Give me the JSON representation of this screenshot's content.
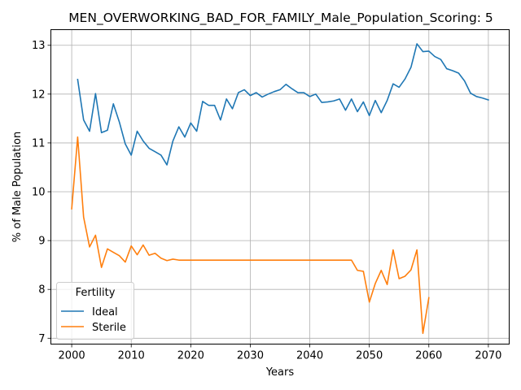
{
  "chart_data": {
    "type": "line",
    "title": "MEN_OVERWORKING_BAD_FOR_FAMILY_Male_Population_Scoring: 5",
    "xlabel": "Years",
    "ylabel": "% of Male Population",
    "xlim": [
      1996.5,
      2073.5
    ],
    "ylim": [
      6.88,
      13.32
    ],
    "xticks": [
      2000,
      2010,
      2020,
      2030,
      2040,
      2050,
      2060,
      2070
    ],
    "yticks": [
      7,
      8,
      9,
      10,
      11,
      12,
      13
    ],
    "grid": true,
    "legend": {
      "title": "Fertility",
      "position": "lower-left"
    },
    "series": [
      {
        "name": "Ideal",
        "color": "#1f77b4",
        "x": [
          2001,
          2002,
          2003,
          2004,
          2005,
          2006,
          2007,
          2008,
          2009,
          2010,
          2011,
          2012,
          2013,
          2014,
          2015,
          2016,
          2017,
          2018,
          2019,
          2020,
          2021,
          2022,
          2023,
          2024,
          2025,
          2026,
          2027,
          2028,
          2029,
          2030,
          2031,
          2032,
          2033,
          2034,
          2035,
          2036,
          2037,
          2038,
          2039,
          2040,
          2041,
          2042,
          2043,
          2044,
          2045,
          2046,
          2047,
          2048,
          2049,
          2050,
          2051,
          2052,
          2053,
          2054,
          2055,
          2056,
          2057,
          2058,
          2059,
          2060,
          2061,
          2062,
          2063,
          2064,
          2065,
          2066,
          2067,
          2068,
          2069,
          2070
        ],
        "y": [
          12.3,
          11.47,
          11.24,
          12.01,
          11.21,
          11.26,
          11.8,
          11.43,
          10.98,
          10.75,
          11.24,
          11.04,
          10.89,
          10.82,
          10.75,
          10.55,
          11.04,
          11.33,
          11.12,
          11.41,
          11.24,
          11.85,
          11.77,
          11.77,
          11.47,
          11.9,
          11.7,
          12.03,
          12.09,
          11.97,
          12.03,
          11.94,
          12.0,
          12.05,
          12.09,
          12.2,
          12.11,
          12.03,
          12.03,
          11.95,
          12.0,
          11.83,
          11.84,
          11.86,
          11.9,
          11.67,
          11.9,
          11.64,
          11.84,
          11.56,
          11.87,
          11.62,
          11.87,
          12.21,
          12.14,
          12.31,
          12.55,
          13.03,
          12.87,
          12.88,
          12.77,
          12.71,
          12.52,
          12.48,
          12.43,
          12.27,
          12.02,
          11.95,
          11.92,
          11.88
        ]
      },
      {
        "name": "Sterile",
        "color": "#ff7f0e",
        "x": [
          2000,
          2001,
          2002,
          2003,
          2004,
          2005,
          2006,
          2007,
          2008,
          2009,
          2010,
          2011,
          2012,
          2013,
          2014,
          2015,
          2016,
          2017,
          2018,
          2019,
          2020,
          2021,
          2022,
          2023,
          2024,
          2025,
          2026,
          2027,
          2028,
          2029,
          2030,
          2031,
          2032,
          2033,
          2034,
          2035,
          2036,
          2037,
          2038,
          2039,
          2040,
          2041,
          2042,
          2043,
          2044,
          2045,
          2046,
          2047,
          2048,
          2049,
          2050,
          2051,
          2052,
          2053,
          2054,
          2055,
          2056,
          2057,
          2058,
          2059,
          2060
        ],
        "y": [
          9.65,
          11.12,
          9.48,
          8.87,
          9.11,
          8.45,
          8.83,
          8.76,
          8.69,
          8.56,
          8.89,
          8.71,
          8.91,
          8.7,
          8.74,
          8.64,
          8.59,
          8.62,
          8.6,
          8.6,
          8.6,
          8.6,
          8.6,
          8.6,
          8.6,
          8.6,
          8.6,
          8.6,
          8.6,
          8.6,
          8.6,
          8.6,
          8.6,
          8.6,
          8.6,
          8.6,
          8.6,
          8.6,
          8.6,
          8.6,
          8.6,
          8.6,
          8.6,
          8.6,
          8.6,
          8.6,
          8.6,
          8.6,
          8.39,
          8.37,
          7.74,
          8.12,
          8.39,
          8.1,
          8.81,
          8.22,
          8.27,
          8.4,
          8.81,
          7.1,
          7.83
        ]
      }
    ]
  }
}
